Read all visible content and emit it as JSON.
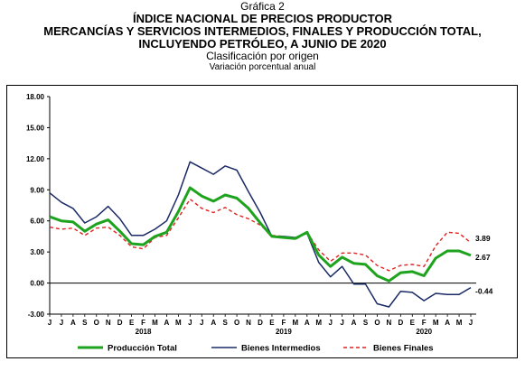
{
  "titles": {
    "label": "Gráfica 2",
    "line1": "ÍNDICE NACIONAL DE PRECIOS PRODUCTOR",
    "line2": "MERCANCÍAS Y SERVICIOS INTERMEDIOS, FINALES Y PRODUCCIÓN TOTAL,",
    "line3": "INCLUYENDO PETRÓLEO, A JUNIO DE 2020",
    "subtitle": "Clasificación por origen",
    "subtitle2": "Variación porcentual anual"
  },
  "chart_data": {
    "type": "line",
    "x": [
      "J",
      "J",
      "A",
      "S",
      "O",
      "N",
      "D",
      "E",
      "F",
      "M",
      "A",
      "M",
      "J",
      "J",
      "A",
      "S",
      "O",
      "N",
      "D",
      "E",
      "F",
      "M",
      "A",
      "M",
      "J",
      "J",
      "A",
      "S",
      "O",
      "N",
      "D",
      "E",
      "F",
      "M",
      "A",
      "M",
      "J"
    ],
    "year_labels": [
      "2018",
      "2019",
      "2020"
    ],
    "year_label_index": [
      8,
      20,
      32
    ],
    "yticks": [
      "18.00",
      "15.00",
      "12.00",
      "9.00",
      "6.00",
      "3.00",
      "0.00",
      "-3.00"
    ],
    "ylim": [
      -3,
      18
    ],
    "grid": false,
    "legend_position": "bottom",
    "colors": {
      "produccion": "#1ea31e",
      "intermedios": "#1a2a66",
      "finales": "#e02020"
    },
    "series": [
      {
        "name": "Producción Total",
        "key": "produccion",
        "style": "solid",
        "values": [
          6.4,
          6.0,
          5.9,
          5.0,
          5.7,
          6.1,
          5.0,
          3.8,
          3.7,
          4.5,
          4.9,
          6.9,
          9.2,
          8.4,
          7.9,
          8.5,
          8.2,
          7.2,
          5.8,
          4.5,
          4.4,
          4.3,
          4.9,
          2.7,
          1.6,
          2.5,
          1.9,
          1.8,
          0.7,
          0.2,
          1.0,
          1.1,
          0.7,
          2.4,
          3.1,
          3.1,
          2.67
        ],
        "end_label": "2.67"
      },
      {
        "name": "Bienes Intermedios",
        "key": "intermedios",
        "style": "solid",
        "values": [
          8.7,
          7.8,
          7.2,
          5.8,
          6.4,
          7.4,
          6.2,
          4.6,
          4.6,
          5.2,
          6.0,
          8.5,
          11.7,
          11.1,
          10.5,
          11.3,
          10.9,
          8.8,
          6.8,
          4.5,
          4.5,
          4.4,
          4.8,
          2.0,
          0.6,
          1.6,
          -0.1,
          -0.1,
          -2.0,
          -2.3,
          -0.8,
          -0.9,
          -1.7,
          -1.0,
          -1.1,
          -1.1,
          -0.44
        ],
        "end_label": "-0.44"
      },
      {
        "name": "Bienes Finales",
        "key": "finales",
        "style": "dashed",
        "values": [
          5.4,
          5.2,
          5.3,
          4.6,
          5.3,
          5.4,
          4.6,
          3.5,
          3.3,
          4.4,
          4.6,
          6.3,
          8.1,
          7.2,
          6.8,
          7.3,
          6.6,
          6.2,
          5.6,
          4.6,
          4.5,
          4.2,
          4.9,
          3.2,
          2.1,
          2.9,
          2.9,
          2.7,
          1.7,
          1.2,
          1.7,
          1.8,
          1.6,
          3.6,
          4.9,
          4.8,
          3.89
        ],
        "end_label": "3.89"
      }
    ]
  }
}
